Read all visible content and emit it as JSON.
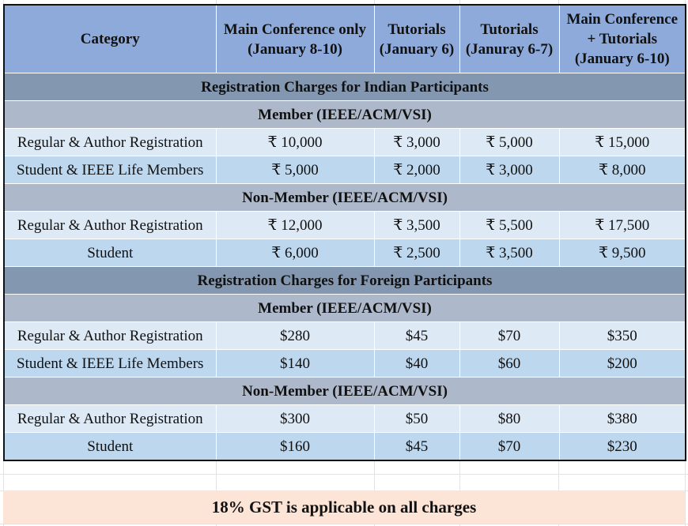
{
  "header": {
    "category": "Category",
    "col1_line1": "Main Conference only",
    "col1_line2": "(January 8-10)",
    "col2_line1": "Tutorials",
    "col2_line2": "(January 6)",
    "col3_line1": "Tutorials",
    "col3_line2": "(Januray 6-7)",
    "col4_line1": "Main Conference",
    "col4_line2": "+ Tutorials",
    "col4_line3": "(January 6-10)"
  },
  "indian": {
    "title": "Registration Charges for Indian Participants",
    "member": {
      "title": "Member (IEEE/ACM/VSI)",
      "rows": [
        {
          "label": "Regular & Author Registration",
          "v1": "₹ 10,000",
          "v2": "₹ 3,000",
          "v3": "₹ 5,000",
          "v4": "₹ 15,000"
        },
        {
          "label": "Student & IEEE Life Members",
          "v1": "₹ 5,000",
          "v2": "₹ 2,000",
          "v3": "₹ 3,000",
          "v4": "₹ 8,000"
        }
      ]
    },
    "nonmember": {
      "title": "Non-Member (IEEE/ACM/VSI)",
      "rows": [
        {
          "label": "Regular & Author Registration",
          "v1": "₹ 12,000",
          "v2": "₹ 3,500",
          "v3": "₹ 5,500",
          "v4": "₹ 17,500"
        },
        {
          "label": "Student",
          "v1": "₹ 6,000",
          "v2": "₹ 2,500",
          "v3": "₹ 3,500",
          "v4": "₹ 9,500"
        }
      ]
    }
  },
  "foreign": {
    "title": "Registration Charges for Foreign Participants",
    "member": {
      "title": "Member (IEEE/ACM/VSI)",
      "rows": [
        {
          "label": "Regular & Author Registration",
          "v1": "$280",
          "v2": "$45",
          "v3": "$70",
          "v4": "$350"
        },
        {
          "label": "Student & IEEE Life Members",
          "v1": "$140",
          "v2": "$40",
          "v3": "$60",
          "v4": "$200"
        }
      ]
    },
    "nonmember": {
      "title": "Non-Member (IEEE/ACM/VSI)",
      "rows": [
        {
          "label": "Regular & Author Registration",
          "v1": "$300",
          "v2": "$50",
          "v3": "$80",
          "v4": "$380"
        },
        {
          "label": "Student",
          "v1": "$160",
          "v2": "$45",
          "v3": "$70",
          "v4": "$230"
        }
      ]
    }
  },
  "footer": {
    "gst_note": "18% GST is applicable on all charges"
  },
  "colors": {
    "header_bg": "#8eaadb",
    "section_bg": "#8497b0",
    "subsection_bg": "#adb9ca",
    "row_light": "#dde9f5",
    "row_mid": "#bdd7ee",
    "footer_bg": "#fce4d6"
  }
}
